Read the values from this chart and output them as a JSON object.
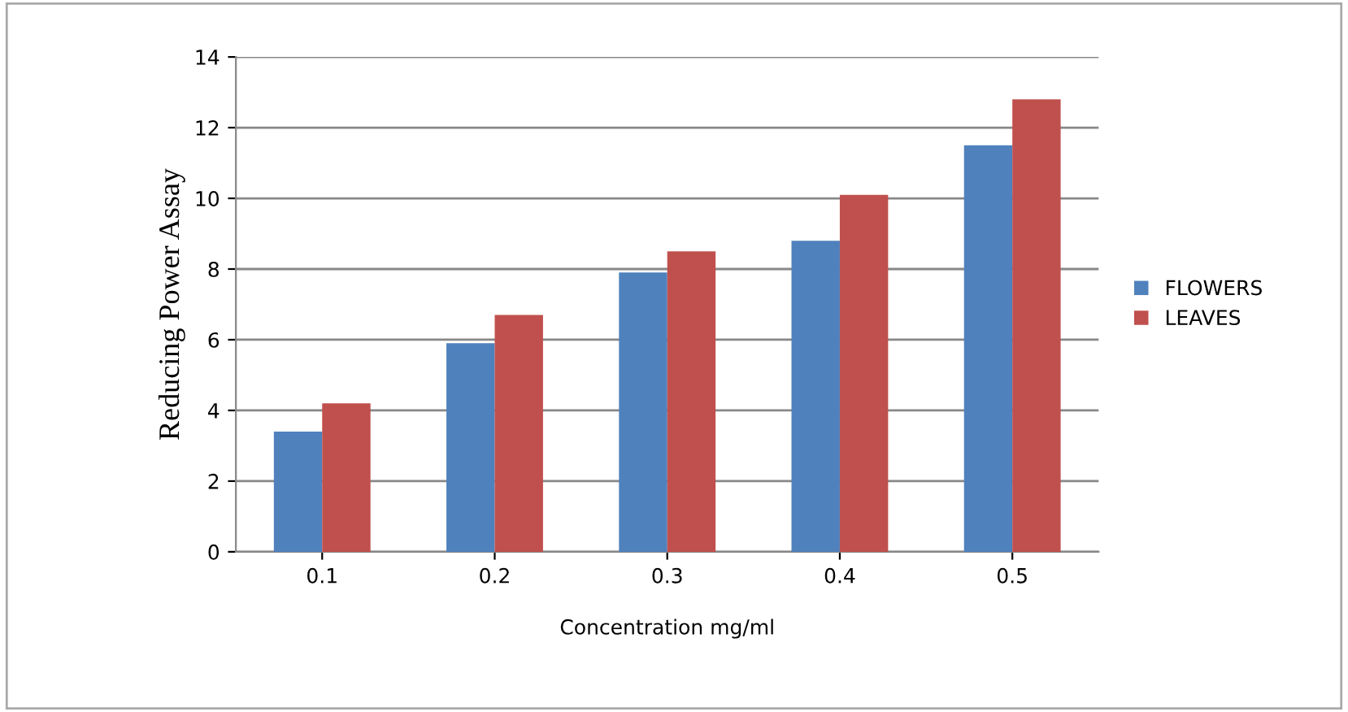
{
  "chart_data": {
    "type": "bar",
    "xlabel": "Concentration mg/ml",
    "ylabel": "Reducing Power Assay",
    "categories": [
      "0.1",
      "0.2",
      "0.3",
      "0.4",
      "0.5"
    ],
    "series": [
      {
        "name": "FLOWERS",
        "color": "#4f81bd",
        "values": [
          3.4,
          5.9,
          7.9,
          8.8,
          11.5
        ]
      },
      {
        "name": "LEAVES",
        "color": "#c0504d",
        "values": [
          4.2,
          6.7,
          8.5,
          10.1,
          12.8
        ]
      }
    ],
    "ylim": [
      0,
      14
    ],
    "yticks": [
      0,
      2,
      4,
      6,
      8,
      10,
      12,
      14
    ],
    "grid": "y",
    "legend": "right"
  }
}
